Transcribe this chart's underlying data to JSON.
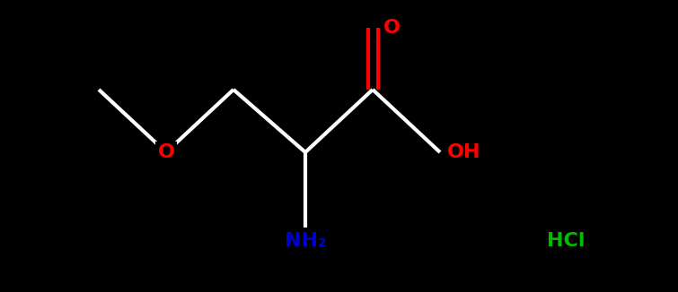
{
  "bg_color": "#000000",
  "bond_color": "#ffffff",
  "oxygen_color": "#ff0000",
  "nitrogen_color": "#0000cd",
  "chlorine_color": "#00bb00",
  "bond_lw": 3.0,
  "font_size": 16,
  "xlim": [
    0.0,
    7.55
  ],
  "ylim": [
    0.0,
    3.26
  ]
}
